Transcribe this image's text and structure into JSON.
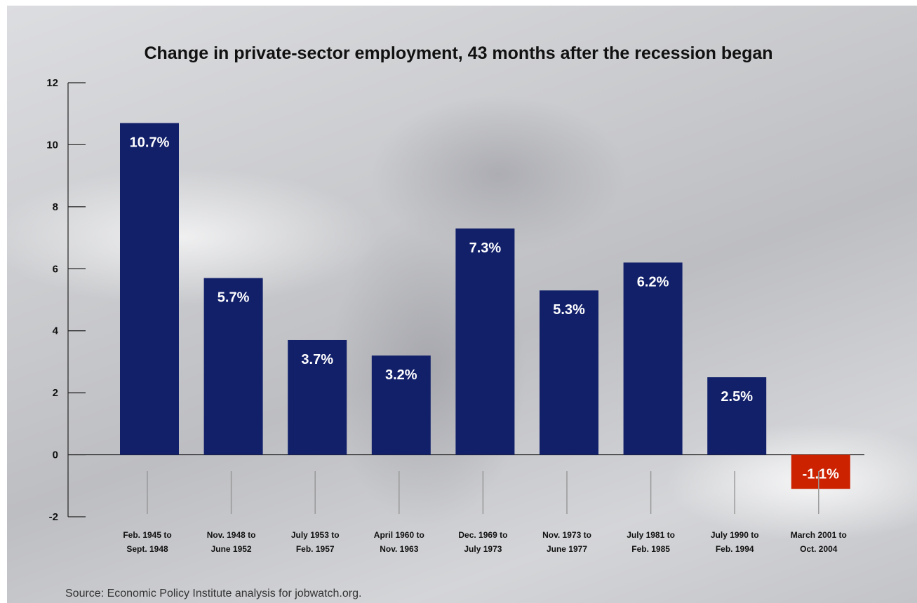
{
  "chart_data": {
    "type": "bar",
    "title": "Change in private-sector employment, 43 months after the recession began",
    "xlabel": "",
    "ylabel": "",
    "ylim": [
      -2,
      12
    ],
    "yticks": [
      12,
      10,
      8,
      6,
      4,
      2,
      0,
      -2
    ],
    "grid": false,
    "categories": [
      [
        "Feb. 1945 to",
        "Sept. 1948"
      ],
      [
        "Nov. 1948 to",
        "June 1952"
      ],
      [
        "July 1953 to",
        "Feb. 1957"
      ],
      [
        "April 1960 to",
        "Nov. 1963"
      ],
      [
        "Dec. 1969 to",
        "July 1973"
      ],
      [
        "Nov. 1973 to",
        "June 1977"
      ],
      [
        "July 1981 to",
        "Feb. 1985"
      ],
      [
        "July 1990 to",
        "Feb. 1994"
      ],
      [
        "March 2001 to",
        "Oct. 2004"
      ]
    ],
    "values": [
      10.7,
      5.7,
      3.7,
      3.2,
      7.3,
      5.3,
      6.2,
      2.5,
      -1.1
    ],
    "data_labels": [
      "10.7%",
      "5.7%",
      "3.7%",
      "3.2%",
      "7.3%",
      "5.3%",
      "6.2%",
      "2.5%",
      "-1.1%"
    ],
    "colors": {
      "positive": "#12206a",
      "negative": "#cc2200"
    }
  },
  "source": "Source: Economic Policy Institute analysis for jobwatch.org."
}
